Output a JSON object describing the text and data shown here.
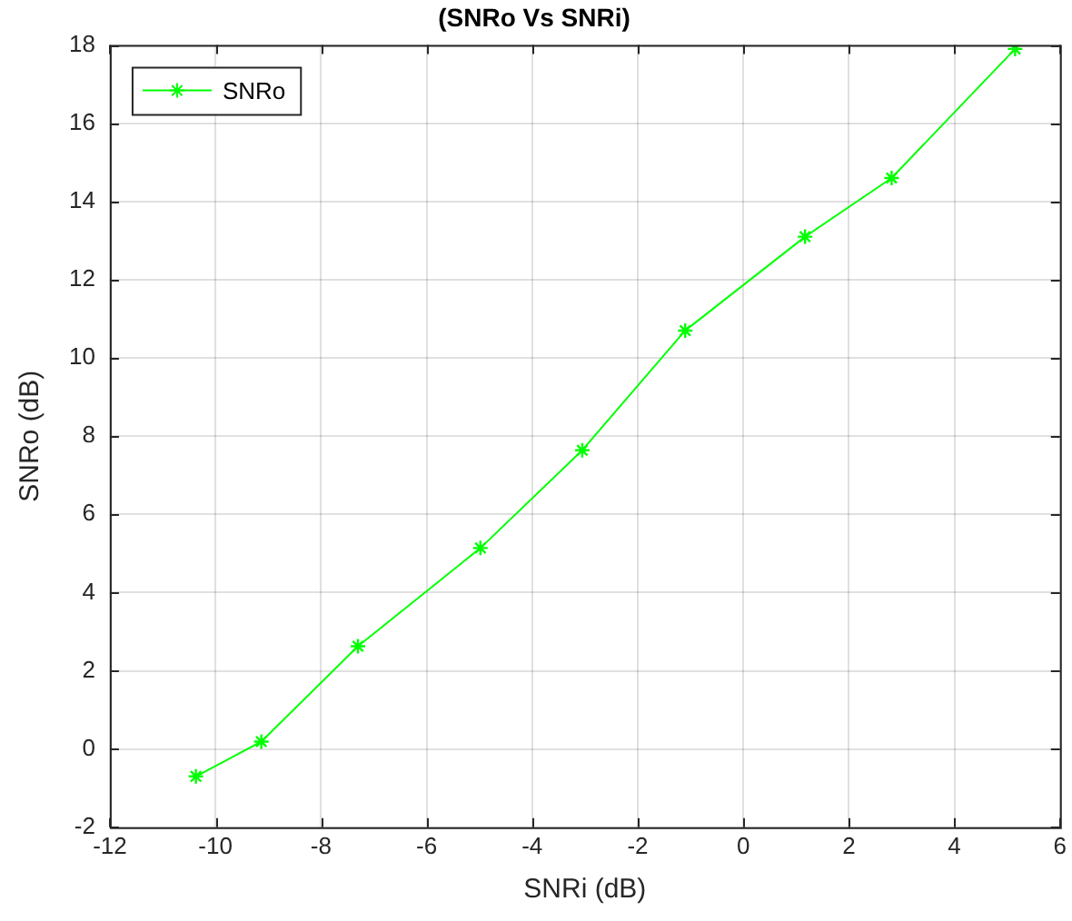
{
  "chart_data": {
    "type": "line",
    "title": "(SNRo Vs SNRi)",
    "xlabel": "SNRi (dB)",
    "ylabel": "SNRo (dB)",
    "x": [
      -10.37,
      -9.13,
      -7.3,
      -4.98,
      -3.05,
      -1.1,
      1.17,
      2.81,
      5.15
    ],
    "series": [
      {
        "name": "SNRo",
        "color": "#00ff00",
        "values": [
          -0.7,
          0.19,
          2.63,
          5.14,
          7.64,
          10.7,
          13.1,
          14.6,
          17.9
        ]
      }
    ],
    "xlim": [
      -12,
      6
    ],
    "xticks": [
      -12,
      -10,
      -8,
      -6,
      -4,
      -2,
      0,
      2,
      4,
      6
    ],
    "ylim": [
      -2,
      18
    ],
    "yticks": [
      -2,
      0,
      2,
      4,
      6,
      8,
      10,
      12,
      14,
      16,
      18
    ],
    "grid": true,
    "legend": "top left",
    "marker": "cross",
    "line_style": "solid"
  }
}
